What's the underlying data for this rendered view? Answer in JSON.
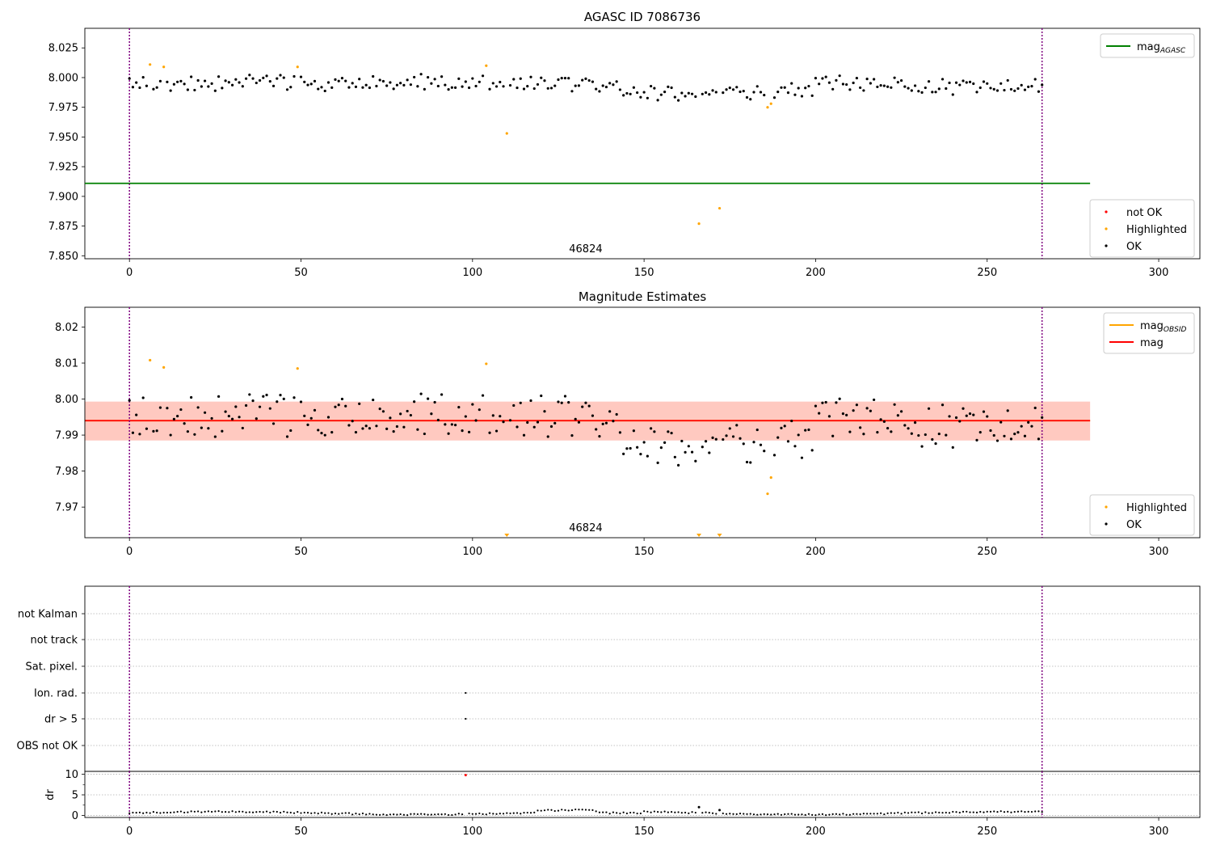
{
  "chart_data": [
    {
      "type": "scatter",
      "title": "AGASC ID 7086736",
      "xlabel": "",
      "ylabel": "",
      "xlim": [
        -13,
        312
      ],
      "ylim": [
        7.8475,
        8.0415
      ],
      "xticks": [
        "0",
        "50",
        "100",
        "150",
        "200",
        "250",
        "300"
      ],
      "yticks": [
        "7.850",
        "7.875",
        "7.900",
        "7.925",
        "7.950",
        "7.975",
        "8.000",
        "8.025"
      ],
      "annotation": {
        "text": "46824",
        "x": 133
      },
      "obs_boundaries": [
        0,
        266
      ],
      "reference_lines": [
        {
          "name": "mag",
          "sub": "AGASC",
          "value": 7.911,
          "color": "#008000"
        }
      ],
      "legend_top": [
        {
          "label": "mag",
          "sub": "AGASC",
          "color": "#008000",
          "kind": "line"
        }
      ],
      "legend_bottom": [
        {
          "label": "not OK",
          "color": "#ff0000",
          "kind": "dot"
        },
        {
          "label": "Highlighted",
          "color": "#ffa500",
          "kind": "dot"
        },
        {
          "label": "OK",
          "color": "#000000",
          "kind": "dot"
        }
      ],
      "highlighted_points": [
        [
          6,
          8.011
        ],
        [
          10,
          8.009
        ],
        [
          49,
          8.009
        ],
        [
          104,
          8.01
        ],
        [
          110,
          7.953
        ],
        [
          166,
          7.877
        ],
        [
          172,
          7.89
        ],
        [
          186,
          7.975
        ],
        [
          187,
          7.978
        ]
      ]
    },
    {
      "type": "scatter",
      "title": "Magnitude Estimates",
      "xlabel": "",
      "ylabel": "",
      "xlim": [
        -13,
        312
      ],
      "ylim": [
        7.9615,
        8.0255
      ],
      "xticks": [
        "0",
        "50",
        "100",
        "150",
        "200",
        "250",
        "300"
      ],
      "yticks": [
        "7.97",
        "7.98",
        "7.99",
        "8.00",
        "8.01",
        "8.02"
      ],
      "annotation": {
        "text": "46824",
        "x": 133
      },
      "obs_boundaries": [
        0,
        266
      ],
      "reference_lines": [
        {
          "name": "mag",
          "sub": "OBSID",
          "value": 7.994,
          "color": "#ffa500"
        },
        {
          "name": "mag",
          "sub": "",
          "value": 7.994,
          "color": "#ff0000"
        }
      ],
      "bands": [
        {
          "y0": 7.9885,
          "y1": 7.9993,
          "color": "#ffc0cb",
          "opacity": 0.5
        },
        {
          "y0": 7.9885,
          "y1": 7.9993,
          "color": "#ffa07a",
          "opacity": 0.35
        }
      ],
      "legend_top": [
        {
          "label": "mag",
          "sub": "OBSID",
          "color": "#ffa500",
          "kind": "line"
        },
        {
          "label": "mag",
          "sub": "",
          "color": "#ff0000",
          "kind": "line"
        }
      ],
      "legend_bottom": [
        {
          "label": "Highlighted",
          "color": "#ffa500",
          "kind": "dot"
        },
        {
          "label": "OK",
          "color": "#000000",
          "kind": "dot"
        }
      ],
      "highlighted_points": [
        [
          6,
          8.0108
        ],
        [
          10,
          8.0088
        ],
        [
          49,
          8.0085
        ],
        [
          104,
          8.0098
        ],
        [
          186,
          7.9737
        ],
        [
          187,
          7.9782
        ]
      ],
      "off_scale_markers_x": [
        110,
        166,
        172
      ]
    },
    {
      "type": "scatter",
      "title": "",
      "xlabel": "",
      "ylabel": "",
      "xlim": [
        -13,
        312
      ],
      "flags": [
        "not Kalman",
        "not track",
        "Sat. pixel.",
        "Ion. rad.",
        "dr > 5",
        "OBS not OK"
      ],
      "flag_points": [
        {
          "flag": "Ion. rad.",
          "x": 98
        },
        {
          "flag": "dr > 5",
          "x": 98
        }
      ],
      "obs_boundaries": [
        0,
        266
      ]
    },
    {
      "type": "scatter",
      "title": "",
      "xlabel": "",
      "ylabel": "dr",
      "xlim": [
        -13,
        312
      ],
      "ylim": [
        -0.5,
        10.7
      ],
      "xticks": [
        "0",
        "50",
        "100",
        "150",
        "200",
        "250",
        "300"
      ],
      "yticks": [
        "0",
        "5",
        "10"
      ],
      "obs_boundaries": [
        0,
        266
      ],
      "outliers": [
        {
          "x": 98,
          "y": 9.8,
          "color": "#ff0000"
        },
        {
          "x": 166,
          "y": 2.0
        },
        {
          "x": 172,
          "y": 1.3
        }
      ]
    }
  ]
}
